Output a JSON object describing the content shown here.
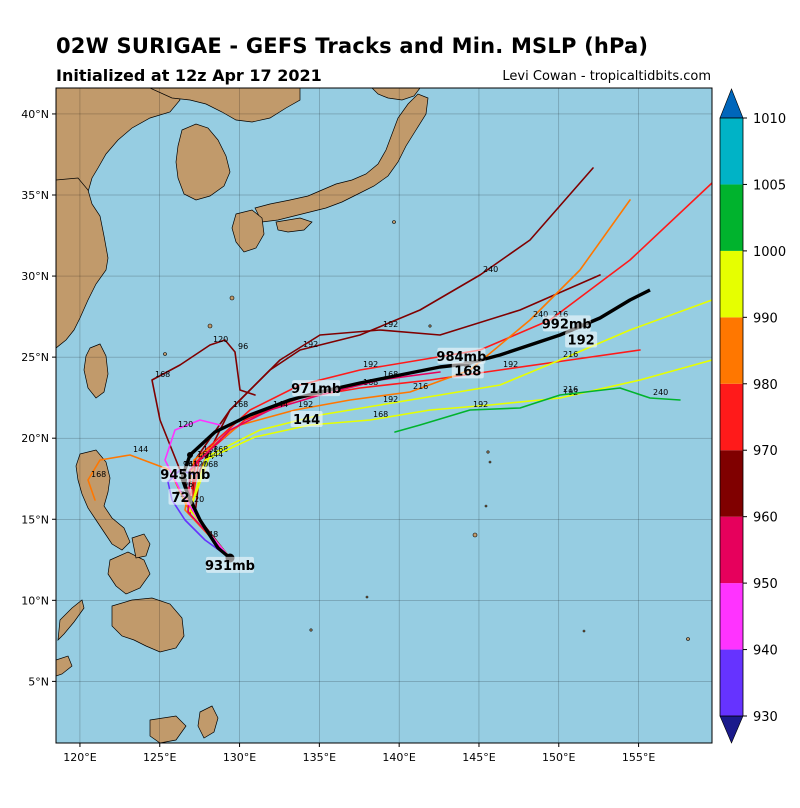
{
  "header": {
    "title": "02W SURIGAE - GEFS Tracks and Min. MSLP (hPa)",
    "subtitle": "Initialized at 12z Apr 17 2021",
    "credit": "Levi Cowan - tropicaltidbits.com"
  },
  "map": {
    "ocean_color": "#96cde2",
    "land_color": "#c19a6b",
    "lon_ticks": [
      "120°E",
      "125°E",
      "130°E",
      "135°E",
      "140°E",
      "145°E",
      "150°E",
      "155°E"
    ],
    "lat_ticks": [
      "5°N",
      "10°N",
      "15°N",
      "20°N",
      "25°N",
      "30°N",
      "35°N",
      "40°N"
    ]
  },
  "colorbar": {
    "ticks": [
      "930",
      "940",
      "950",
      "960",
      "970",
      "980",
      "990",
      "1000",
      "1005",
      "1010"
    ],
    "bands": [
      {
        "label": "<930",
        "color": "#1a1a8c"
      },
      {
        "label": "930-940",
        "color": "#6633ff"
      },
      {
        "label": "940-950",
        "color": "#ff33ff"
      },
      {
        "label": "950-960",
        "color": "#e6005c"
      },
      {
        "label": "960-970",
        "color": "#800000"
      },
      {
        "label": "970-980",
        "color": "#ff1a1a"
      },
      {
        "label": "980-990",
        "color": "#ff7700"
      },
      {
        "label": "990-1000",
        "color": "#e6ff00"
      },
      {
        "label": "1000-1005",
        "color": "#00b32d"
      },
      {
        "label": "1005-1010",
        "color": "#00b3c6"
      },
      {
        "label": ">1010",
        "color": "#0066bb"
      }
    ]
  },
  "mean_track": {
    "points": [
      {
        "lon": 129.4,
        "lat": 12.0,
        "label": "931mb"
      },
      {
        "lon": 126.6,
        "lat": 17.6,
        "label": "945mb"
      },
      {
        "lon": 126.3,
        "lat": 16.2,
        "label": "72"
      },
      {
        "lon": 134.8,
        "lat": 22.9,
        "label": "971mb"
      },
      {
        "lon": 134.2,
        "lat": 21.0,
        "label": "144"
      },
      {
        "lon": 143.9,
        "lat": 24.9,
        "label": "984mb"
      },
      {
        "lon": 144.3,
        "lat": 24.0,
        "label": "168"
      },
      {
        "lon": 150.5,
        "lat": 26.9,
        "label": "992mb"
      },
      {
        "lon": 151.4,
        "lat": 25.9,
        "label": "192"
      }
    ]
  },
  "members": [
    {
      "color": "#800000",
      "labels": [
        "144",
        "168",
        "120",
        "96"
      ]
    },
    {
      "color": "#800000",
      "labels": [
        "168",
        "192",
        "240"
      ]
    },
    {
      "color": "#800000",
      "labels": [
        "168",
        "192"
      ]
    },
    {
      "color": "#ff1a1a",
      "labels": [
        "168",
        "192",
        "216"
      ]
    },
    {
      "color": "#ff1a1a",
      "labels": [
        "144",
        "168",
        "192"
      ]
    },
    {
      "color": "#ff7700",
      "labels": [
        "168",
        "192",
        "216",
        "240"
      ]
    },
    {
      "color": "#ff7700",
      "labels": [
        "120",
        "144",
        "168"
      ]
    },
    {
      "color": "#e6ff00",
      "labels": [
        "168",
        "192",
        "216"
      ]
    },
    {
      "color": "#e6ff00",
      "labels": [
        "144",
        "168",
        "192"
      ]
    },
    {
      "color": "#00b32d",
      "labels": [
        "192",
        "216",
        "240"
      ]
    },
    {
      "color": "#e6005c",
      "labels": [
        "120",
        "144",
        "168"
      ]
    },
    {
      "color": "#ff33ff",
      "labels": [
        "96",
        "120"
      ]
    },
    {
      "color": "#6633ff",
      "labels": [
        "48",
        "72",
        "96"
      ]
    }
  ]
}
